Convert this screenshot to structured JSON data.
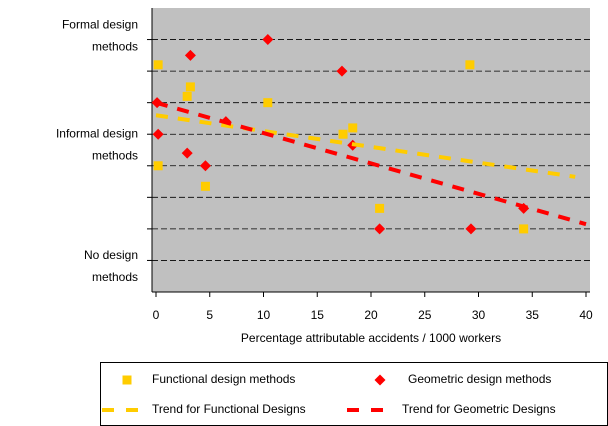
{
  "chart_data": {
    "type": "scatter",
    "x_label": "Percentage attributable accidents / 1000 workers",
    "xlim": [
      0,
      40
    ],
    "xticks": [
      0,
      5,
      10,
      15,
      20,
      25,
      30,
      35,
      40
    ],
    "ylim": [
      0,
      9
    ],
    "yticks": [
      {
        "value": 8.1,
        "label": "Formal design methods"
      },
      {
        "value": 4.65,
        "label": "Informal design methods"
      },
      {
        "value": 0.8,
        "label": "No design methods"
      }
    ],
    "grid_lines": [
      1,
      2,
      3,
      4,
      5,
      6,
      7,
      8
    ],
    "grid": true,
    "background": "#c0c0c0",
    "legend": "bottom",
    "series": [
      {
        "name": "Functional design methods",
        "color": "#ffcc00",
        "marker": "square",
        "x": [
          0.2,
          0.2,
          2.9,
          3.2,
          10.4,
          4.6,
          17.4,
          18.3,
          20.8,
          29.2,
          34.2
        ],
        "values": [
          7.2,
          4.0,
          6.2,
          6.5,
          6.0,
          3.35,
          5.0,
          5.2,
          2.65,
          7.2,
          2.0
        ]
      },
      {
        "name": "Geometric design methods",
        "color": "#ff0000",
        "marker": "diamond",
        "x": [
          0.1,
          0.2,
          3.2,
          2.9,
          4.6,
          6.5,
          10.4,
          17.3,
          18.3,
          20.8,
          29.3,
          34.2
        ],
        "values": [
          6.0,
          5.0,
          7.5,
          4.4,
          4.0,
          5.4,
          8.0,
          7.0,
          4.65,
          2.0,
          2.0,
          2.65
        ]
      },
      {
        "name": "Trend for Functional Designs",
        "color": "#ffcc00",
        "marker": "dash",
        "x": [
          0,
          39
        ],
        "values": [
          5.6,
          3.65
        ]
      },
      {
        "name": "Trend for Geometric Designs",
        "color": "#ff0000",
        "marker": "dash",
        "x": [
          0,
          40
        ],
        "values": [
          6.0,
          2.15
        ]
      }
    ]
  }
}
